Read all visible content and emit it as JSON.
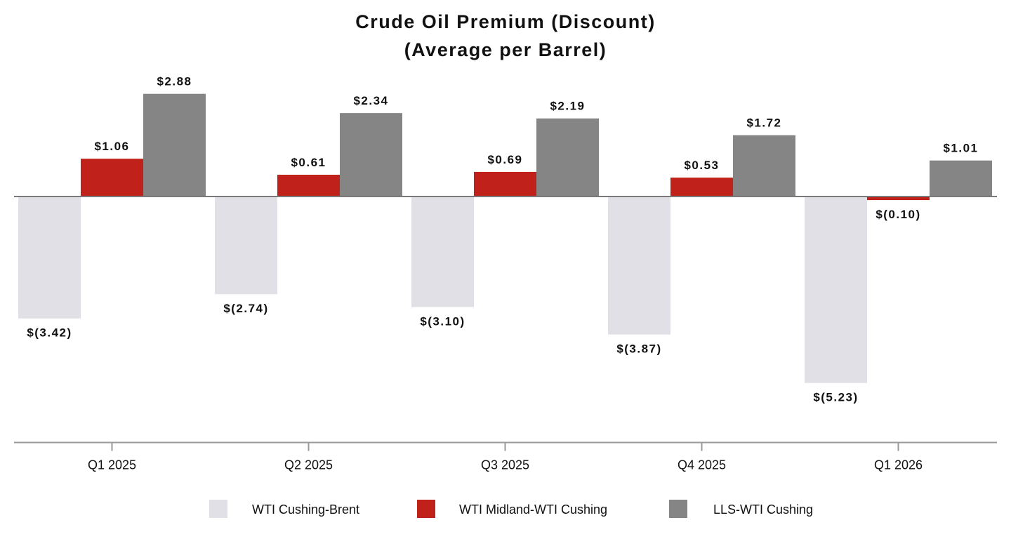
{
  "chart_data": {
    "type": "bar",
    "title": "Crude Oil Premium (Discount)",
    "subtitle": "(Average per Barrel)",
    "categories": [
      "Q1 2025",
      "Q2 2025",
      "Q3 2025",
      "Q4 2025",
      "Q1 2026"
    ],
    "series": [
      {
        "name": "WTI Cushing-Brent",
        "color": "#e0e0e6",
        "values": [
          -3.42,
          -2.74,
          -3.1,
          -3.87,
          -5.23
        ],
        "labels": [
          "$(3.42)",
          "$(2.74)",
          "$(3.10)",
          "$(3.87)",
          "$(5.23)"
        ]
      },
      {
        "name": "WTI Midland-WTI Cushing",
        "color": "#c0211a",
        "values": [
          1.06,
          0.61,
          0.69,
          0.53,
          -0.1
        ],
        "labels": [
          "$1.06",
          "$0.61",
          "$0.69",
          "$0.53",
          "$(0.10)"
        ]
      },
      {
        "name": "LLS-WTI Cushing",
        "color": "#858585",
        "values": [
          2.88,
          2.34,
          2.19,
          1.72,
          1.01
        ],
        "labels": [
          "$2.88",
          "$2.34",
          "$2.19",
          "$1.72",
          "$1.01"
        ]
      }
    ],
    "ylim": [
      -6.9,
      3.7
    ],
    "grid": false,
    "legend_position": "bottom"
  }
}
